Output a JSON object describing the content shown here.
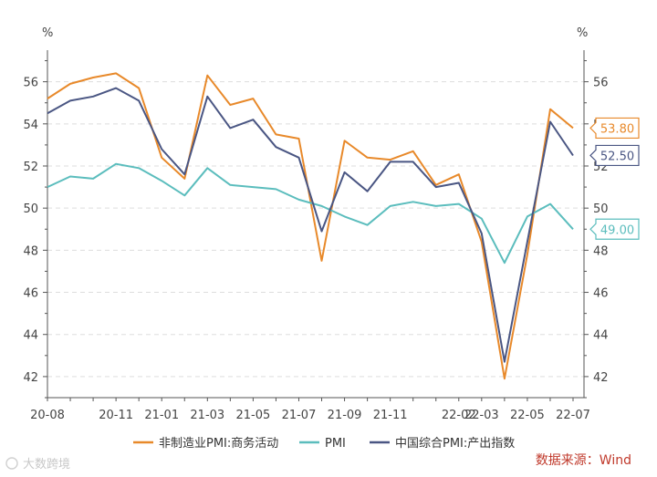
{
  "chart_data": {
    "type": "line",
    "y_unit_left": "%",
    "y_unit_right": "%",
    "ylim": [
      41,
      57.5
    ],
    "yticks": [
      42,
      44,
      46,
      48,
      50,
      52,
      54,
      56
    ],
    "xtick_labels": [
      "20-08",
      "20-11",
      "21-01",
      "21-03",
      "21-05",
      "21-07",
      "21-09",
      "21-11",
      "22-02",
      "22-03",
      "22-05",
      "22-07"
    ],
    "xtick_positions": [
      "2020-08",
      "2020-11",
      "2021-01",
      "2021-03",
      "2021-05",
      "2021-07",
      "2021-09",
      "2021-11",
      "2022-02",
      "2022-03",
      "2022-05",
      "2022-07"
    ],
    "x": [
      "2020-08",
      "2020-09",
      "2020-10",
      "2020-11",
      "2020-12",
      "2021-01",
      "2021-02",
      "2021-03",
      "2021-04",
      "2021-05",
      "2021-06",
      "2021-07",
      "2021-08",
      "2021-09",
      "2021-10",
      "2021-11",
      "2021-12",
      "2022-01",
      "2022-02",
      "2022-03",
      "2022-04",
      "2022-05",
      "2022-06",
      "2022-07"
    ],
    "grid": true,
    "legend_position": "bottom",
    "series": [
      {
        "name": "非制造业PMI:商务活动",
        "color": "#E8892A",
        "end_label": "53.80",
        "values": [
          55.2,
          55.9,
          56.2,
          56.4,
          55.7,
          52.4,
          51.4,
          56.3,
          54.9,
          55.2,
          53.5,
          53.3,
          47.5,
          53.2,
          52.4,
          52.3,
          52.7,
          51.1,
          51.6,
          48.4,
          41.9,
          47.8,
          54.7,
          53.8
        ]
      },
      {
        "name": "PMI",
        "color": "#5BBDBD",
        "end_label": "49.00",
        "values": [
          51.0,
          51.5,
          51.4,
          52.1,
          51.9,
          51.3,
          50.6,
          51.9,
          51.1,
          51.0,
          50.9,
          50.4,
          50.1,
          49.6,
          49.2,
          50.1,
          50.3,
          50.1,
          50.2,
          49.5,
          47.4,
          49.6,
          50.2,
          49.0
        ]
      },
      {
        "name": "中国综合PMI:产出指数",
        "color": "#4A5683",
        "end_label": "52.50",
        "values": [
          54.5,
          55.1,
          55.3,
          55.7,
          55.1,
          52.8,
          51.6,
          55.3,
          53.8,
          54.2,
          52.9,
          52.4,
          48.9,
          51.7,
          50.8,
          52.2,
          52.2,
          51.0,
          51.2,
          48.8,
          42.7,
          48.4,
          54.1,
          52.5
        ]
      }
    ]
  },
  "source": "数据来源：Wind",
  "watermark": "大数跨境"
}
